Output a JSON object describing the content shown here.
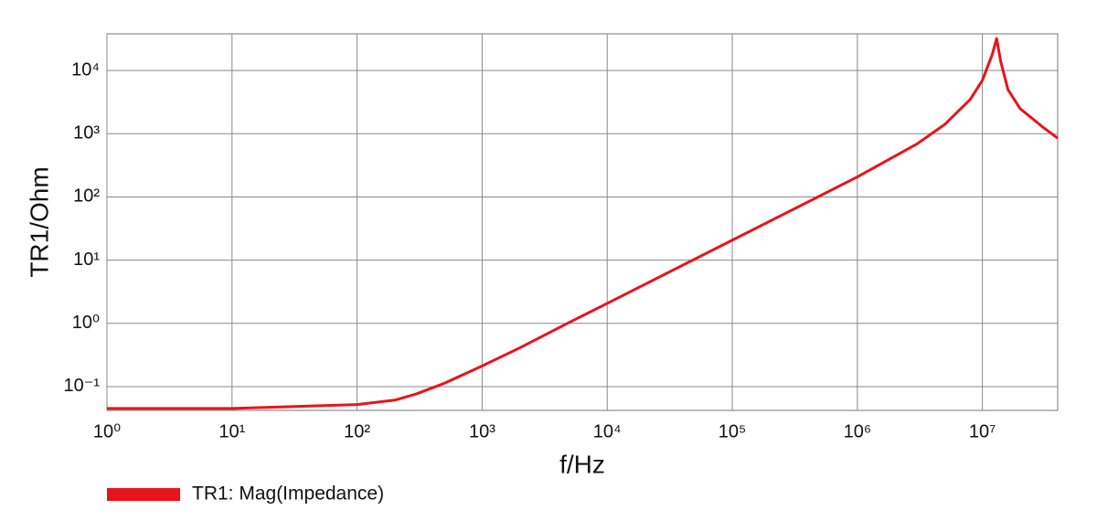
{
  "chart_data": {
    "type": "line",
    "x_label": "f/Hz",
    "y_label": "TR1/Ohm",
    "xscale": "log",
    "yscale": "log",
    "grid": true,
    "legend": "bottom-left",
    "xlim": [
      1,
      40000000
    ],
    "ylim": [
      0.042,
      38000
    ],
    "xticks": [
      {
        "value": 1,
        "label": "10⁰"
      },
      {
        "value": 10,
        "label": "10¹"
      },
      {
        "value": 100,
        "label": "10²"
      },
      {
        "value": 1000,
        "label": "10³"
      },
      {
        "value": 10000,
        "label": "10⁴"
      },
      {
        "value": 100000,
        "label": "10⁵"
      },
      {
        "value": 1000000,
        "label": "10⁶"
      },
      {
        "value": 10000000,
        "label": "10⁷"
      }
    ],
    "yticks": [
      {
        "value": 0.1,
        "label": "10⁻¹"
      },
      {
        "value": 1,
        "label": "10⁰"
      },
      {
        "value": 10,
        "label": "10¹"
      },
      {
        "value": 100,
        "label": "10²"
      },
      {
        "value": 1000,
        "label": "10³"
      },
      {
        "value": 10000,
        "label": "10⁴"
      }
    ],
    "x": [
      1,
      10,
      100,
      200,
      300,
      500,
      1000,
      2000,
      5000,
      10000,
      100000,
      1000000,
      3000000,
      5000000,
      8000000,
      10000000,
      12000000,
      13000000,
      14000000,
      16000000,
      20000000,
      30000000,
      40000000
    ],
    "series": [
      {
        "name": "TR1: Mag(Impedance)",
        "color": "#e8141c",
        "values": [
          0.045,
          0.045,
          0.052,
          0.061,
          0.077,
          0.113,
          0.212,
          0.41,
          1.04,
          2.07,
          20.7,
          207,
          690,
          1400,
          3500,
          7000,
          18000,
          32000,
          14000,
          5000,
          2500,
          1300,
          850
        ]
      }
    ]
  }
}
